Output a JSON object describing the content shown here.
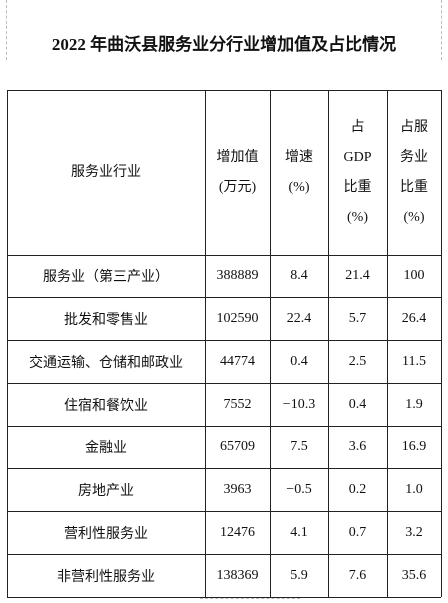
{
  "title": "2022 年曲沃县服务业分行业增加值及占比情况",
  "table": {
    "header": [
      [
        "服务业行业"
      ],
      [
        "增加值",
        "(万元)"
      ],
      [
        "增速",
        "(%)"
      ],
      [
        "占",
        "GDP",
        "比重",
        "(%)"
      ],
      [
        "占服",
        "务业",
        "比重",
        "(%)"
      ]
    ],
    "rows": [
      [
        "服务业（第三产业）",
        "388889",
        "8.4",
        "21.4",
        "100"
      ],
      [
        "批发和零售业",
        "102590",
        "22.4",
        "5.7",
        "26.4"
      ],
      [
        "交通运输、仓储和邮政业",
        "44774",
        "0.4",
        "2.5",
        "11.5"
      ],
      [
        "住宿和餐饮业",
        "7552",
        "−10.3",
        "0.4",
        "1.9"
      ],
      [
        "金融业",
        "65709",
        "7.5",
        "3.6",
        "16.9"
      ],
      [
        "房地产业",
        "3963",
        "−0.5",
        "0.2",
        "1.0"
      ],
      [
        "营利性服务业",
        "12476",
        "4.1",
        "0.7",
        "3.2"
      ],
      [
        "非营利性服务业",
        "138369",
        "5.9",
        "7.6",
        "35.6"
      ]
    ]
  }
}
